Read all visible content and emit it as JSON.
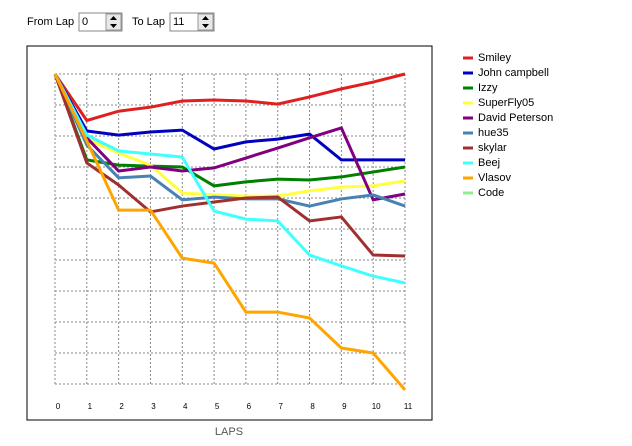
{
  "controls": {
    "from_label": "From Lap",
    "from_value": "0",
    "to_label": "To Lap",
    "to_value": "11"
  },
  "chart_data": {
    "type": "line",
    "xlabel": "LAPS",
    "x": [
      0,
      1,
      2,
      3,
      4,
      5,
      6,
      7,
      8,
      9,
      10,
      11
    ],
    "xlim": [
      0,
      11
    ],
    "xticks": [
      0,
      1,
      2,
      3,
      4,
      5,
      6,
      7,
      8,
      9,
      10,
      11
    ],
    "ylim": [
      0,
      10.5
    ],
    "y_inverted": true,
    "ygrid_lines": [
      0,
      1,
      2,
      3,
      4,
      5,
      6,
      7,
      8,
      9,
      10
    ],
    "grid": true,
    "series": [
      {
        "name": "Smiley",
        "color": "#e02020",
        "values": [
          0,
          1.5,
          1.2,
          1.07,
          0.87,
          0.84,
          0.87,
          0.97,
          0.74,
          0.48,
          0.26,
          0
        ]
      },
      {
        "name": "John campbell",
        "color": "#0000c0",
        "values": [
          0,
          1.84,
          1.97,
          1.87,
          1.81,
          2.42,
          2.19,
          2.1,
          1.94,
          2.77,
          2.77,
          2.77
        ]
      },
      {
        "name": "Izzy",
        "color": "#008000",
        "values": [
          0,
          2.77,
          2.94,
          2.97,
          3.0,
          3.61,
          3.48,
          3.39,
          3.42,
          3.32,
          3.16,
          3.0
        ]
      },
      {
        "name": "SuperFly05",
        "color": "#ffff40",
        "values": [
          0,
          2.1,
          2.55,
          2.94,
          3.84,
          3.9,
          3.94,
          3.94,
          3.77,
          3.65,
          3.61,
          3.45
        ]
      },
      {
        "name": "David Peterson",
        "color": "#800080",
        "values": [
          0,
          2.06,
          3.13,
          3.0,
          3.13,
          3.03,
          2.71,
          2.39,
          2.06,
          1.74,
          4.06,
          3.87
        ]
      },
      {
        "name": "hue35",
        "color": "#4682b4",
        "values": [
          0,
          2.29,
          3.35,
          3.29,
          4.06,
          3.97,
          4.03,
          4.03,
          4.26,
          4.03,
          3.9,
          4.26
        ]
      },
      {
        "name": "skylar",
        "color": "#a03030",
        "values": [
          0,
          2.87,
          3.58,
          4.45,
          4.26,
          4.13,
          4.0,
          3.97,
          4.74,
          4.61,
          5.84,
          5.87
        ]
      },
      {
        "name": "Beej",
        "color": "#40ffff",
        "values": [
          0,
          1.97,
          2.48,
          2.58,
          2.68,
          4.42,
          4.68,
          4.74,
          5.84,
          6.19,
          6.52,
          6.74
        ]
      },
      {
        "name": "Vlasov",
        "color": "#ffa500",
        "values": [
          0,
          2.16,
          4.39,
          4.39,
          5.94,
          6.1,
          7.68,
          7.68,
          7.87,
          8.84,
          9.0,
          10.19
        ]
      },
      {
        "name": "Code",
        "color": "#90ee90",
        "values": [
          null,
          null,
          null,
          null,
          null,
          null,
          null,
          null,
          null,
          null,
          null,
          null
        ]
      }
    ]
  }
}
